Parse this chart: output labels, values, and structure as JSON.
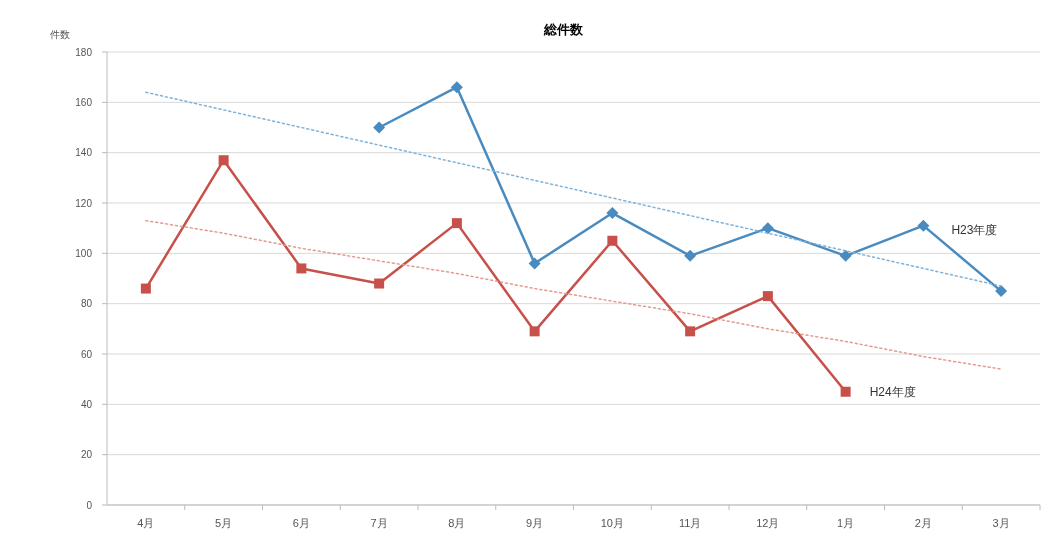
{
  "chart_data": {
    "type": "line",
    "title": "総件数",
    "ylabel": "件数",
    "categories": [
      "4月",
      "5月",
      "6月",
      "7月",
      "8月",
      "9月",
      "10月",
      "11月",
      "12月",
      "1月",
      "2月",
      "3月"
    ],
    "series": [
      {
        "name": "H23年度",
        "color": "#4a8bbf",
        "marker": "diamond",
        "values": [
          null,
          null,
          null,
          150,
          166,
          96,
          116,
          99,
          110,
          99,
          111,
          85
        ]
      },
      {
        "name": "H24年度",
        "color": "#c8504a",
        "marker": "square",
        "values": [
          86,
          137,
          94,
          88,
          112,
          69,
          105,
          69,
          83,
          45,
          null,
          null
        ]
      },
      {
        "color": "#7fb2d9",
        "marker": "none",
        "line_style": "dotted",
        "values": [
          164,
          157,
          150,
          143,
          136,
          129,
          122,
          115,
          108,
          101,
          94,
          87
        ]
      },
      {
        "color": "#e39b8e",
        "marker": "none",
        "line_style": "dotted",
        "values": [
          113,
          108,
          102,
          97,
          92,
          86,
          81,
          76,
          70,
          65,
          59,
          54
        ]
      }
    ],
    "ylim": [
      0,
      180
    ],
    "yticks": [
      0,
      20,
      40,
      60,
      80,
      100,
      120,
      140,
      160,
      180
    ],
    "grid": "y"
  }
}
